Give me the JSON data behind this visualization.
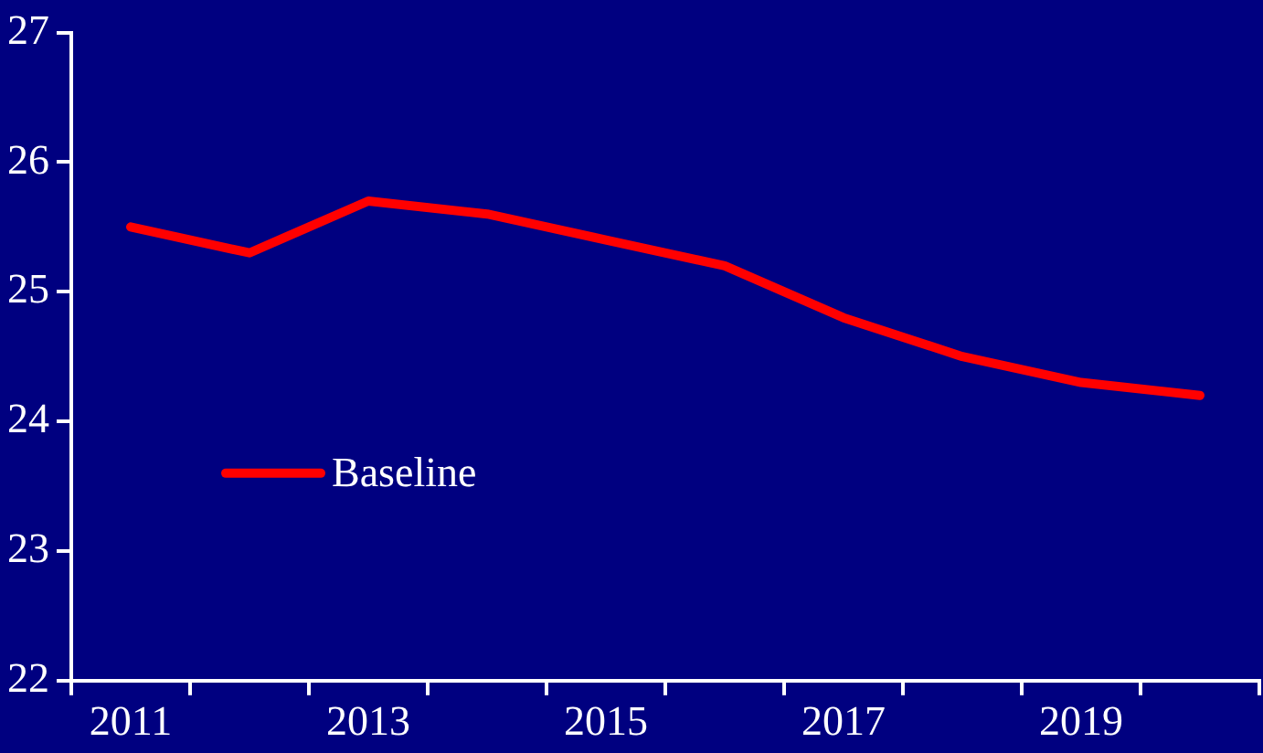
{
  "chart_data": {
    "type": "line",
    "categories": [
      "2011",
      null,
      "2013",
      null,
      "2015",
      null,
      "2017",
      null,
      "2019",
      null
    ],
    "series": [
      {
        "name": "Baseline",
        "color": "#ff0000",
        "values": [
          25.5,
          25.3,
          25.7,
          25.6,
          25.4,
          25.2,
          24.8,
          24.5,
          24.3,
          24.2
        ]
      }
    ],
    "ylim": [
      22,
      27
    ],
    "yticks": [
      22,
      23,
      24,
      25,
      26,
      27
    ],
    "grid": false,
    "legend": "left",
    "marker": "none",
    "line_style": "solid"
  }
}
